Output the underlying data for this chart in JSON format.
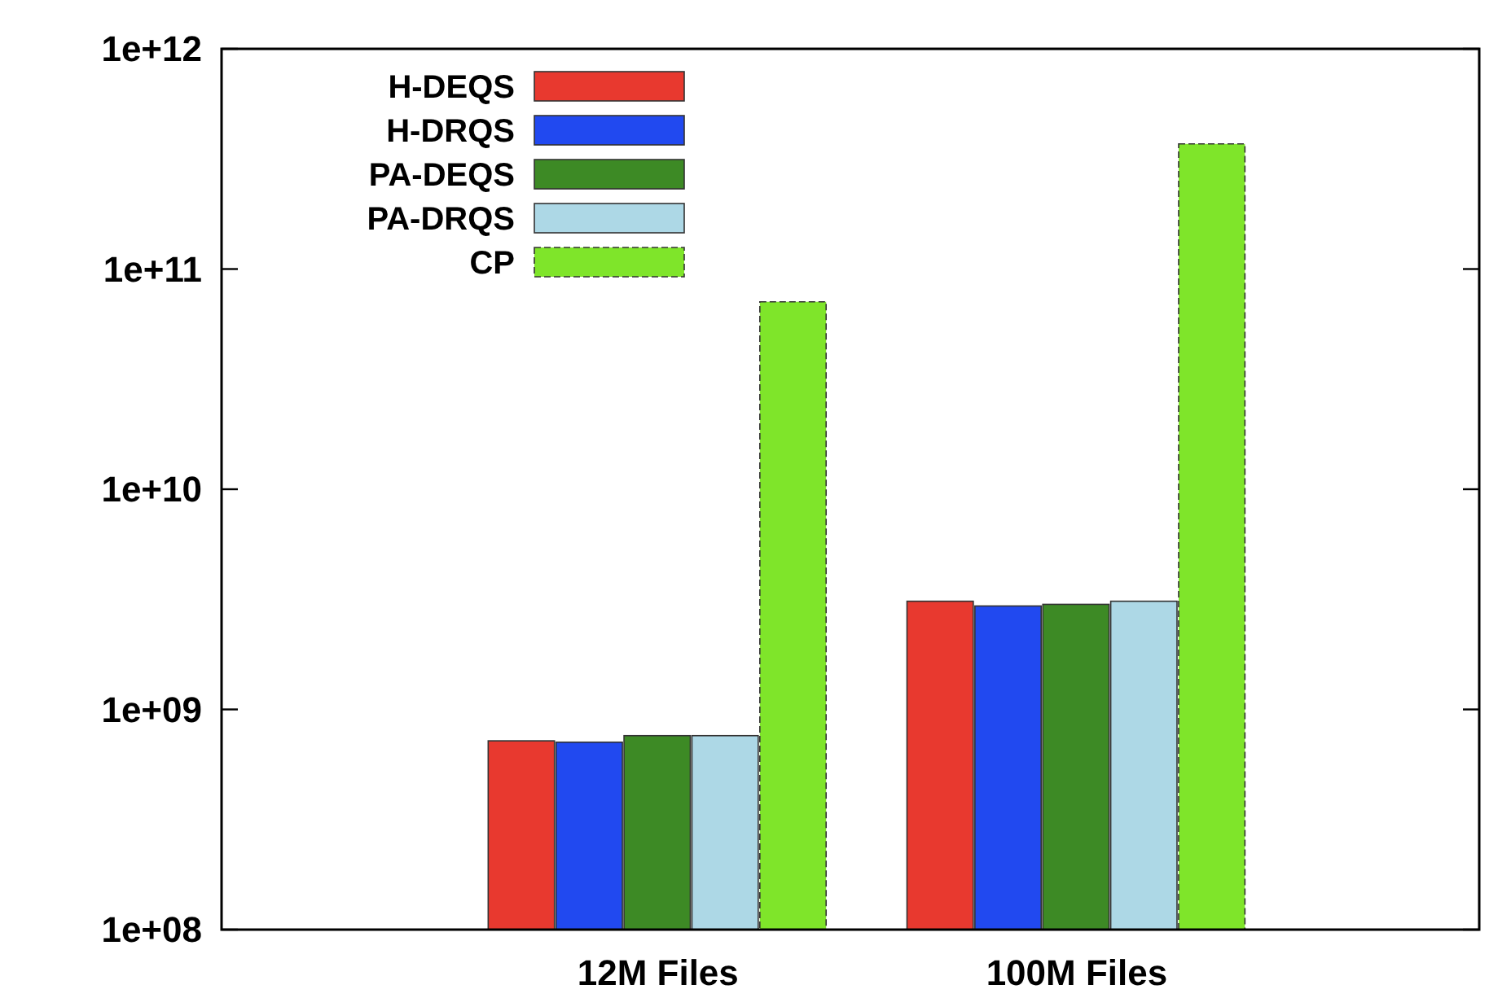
{
  "chart_data": {
    "type": "bar",
    "categories": [
      "12M Files",
      "100M Files"
    ],
    "series": [
      {
        "name": "H-DEQS",
        "color": "#e8392f",
        "values": [
          720000000,
          3100000000
        ]
      },
      {
        "name": "H-DRQS",
        "color": "#2149f0",
        "values": [
          710000000,
          2950000000
        ]
      },
      {
        "name": "PA-DEQS",
        "color": "#3d8a25",
        "values": [
          760000000,
          3000000000
        ]
      },
      {
        "name": "PA-DRQS",
        "color": "#add8e6",
        "values": [
          760000000,
          3100000000
        ]
      },
      {
        "name": "CP",
        "color": "#7fe52a",
        "values": [
          71000000000,
          370000000000
        ]
      }
    ],
    "log": true,
    "ylim": [
      100000000,
      1000000000000
    ],
    "yticks": [
      {
        "value": 100000000,
        "label": "1e+08"
      },
      {
        "value": 1000000000,
        "label": "1e+09"
      },
      {
        "value": 10000000000,
        "label": "1e+10"
      },
      {
        "value": 100000000000,
        "label": "1e+11"
      },
      {
        "value": 1000000000000,
        "label": "1e+12"
      }
    ],
    "legend": "top left",
    "grid": false
  }
}
